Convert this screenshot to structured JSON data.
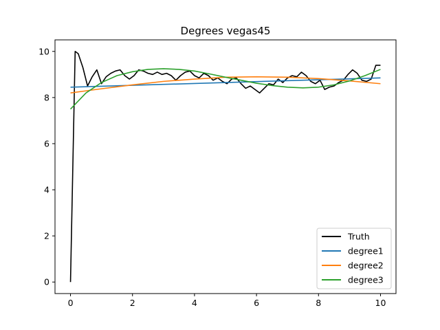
{
  "chart_data": {
    "type": "line",
    "title": "Degrees vegas45",
    "xlabel": "",
    "ylabel": "",
    "xlim": [
      -0.5,
      10.5
    ],
    "ylim": [
      -0.5,
      10.5
    ],
    "xticks": [
      0,
      2,
      4,
      6,
      8,
      10
    ],
    "yticks": [
      0,
      2,
      4,
      6,
      8,
      10
    ],
    "grid": false,
    "legend_position": "lower-right",
    "series": [
      {
        "name": "Truth",
        "color": "#000000",
        "x": [
          0,
          0.15,
          0.25,
          0.4,
          0.55,
          0.7,
          0.85,
          1.0,
          1.15,
          1.3,
          1.45,
          1.6,
          1.75,
          1.9,
          2.05,
          2.2,
          2.35,
          2.5,
          2.65,
          2.8,
          2.95,
          3.1,
          3.25,
          3.4,
          3.55,
          3.7,
          3.85,
          4.0,
          4.15,
          4.3,
          4.45,
          4.6,
          4.75,
          4.9,
          5.05,
          5.2,
          5.35,
          5.5,
          5.65,
          5.8,
          5.95,
          6.1,
          6.25,
          6.4,
          6.55,
          6.7,
          6.85,
          7.0,
          7.15,
          7.3,
          7.45,
          7.6,
          7.75,
          7.9,
          8.05,
          8.2,
          8.35,
          8.5,
          8.65,
          8.8,
          8.95,
          9.1,
          9.25,
          9.4,
          9.55,
          9.7,
          9.85,
          10.0
        ],
        "y": [
          0,
          10.0,
          9.9,
          9.3,
          8.5,
          8.9,
          9.2,
          8.6,
          8.9,
          9.05,
          9.15,
          9.2,
          8.95,
          8.8,
          8.95,
          9.2,
          9.15,
          9.05,
          9.0,
          9.1,
          9.0,
          9.05,
          8.95,
          8.75,
          8.95,
          9.1,
          9.15,
          8.95,
          8.85,
          9.05,
          8.95,
          8.75,
          8.85,
          8.7,
          8.6,
          8.8,
          8.85,
          8.6,
          8.4,
          8.5,
          8.35,
          8.2,
          8.4,
          8.6,
          8.55,
          8.8,
          8.65,
          8.85,
          8.95,
          8.9,
          9.1,
          8.95,
          8.7,
          8.6,
          8.75,
          8.35,
          8.45,
          8.5,
          8.65,
          8.75,
          9.0,
          9.2,
          9.05,
          8.75,
          8.7,
          8.8,
          9.4,
          9.4
        ]
      },
      {
        "name": "degree1",
        "color": "#1f77b4",
        "x": [
          0,
          10
        ],
        "y": [
          8.45,
          8.85
        ]
      },
      {
        "name": "degree2",
        "color": "#ff7f0e",
        "x": [
          0,
          1,
          2,
          3,
          4,
          5,
          6,
          7,
          8,
          9,
          10
        ],
        "y": [
          8.2,
          8.38,
          8.55,
          8.7,
          8.8,
          8.88,
          8.9,
          8.88,
          8.82,
          8.72,
          8.6
        ]
      },
      {
        "name": "degree3",
        "color": "#2ca02c",
        "x": [
          0,
          0.5,
          1,
          1.5,
          2,
          2.5,
          3,
          3.5,
          4,
          4.5,
          5,
          5.5,
          6,
          6.5,
          7,
          7.5,
          8,
          8.5,
          9,
          9.5,
          10
        ],
        "y": [
          7.5,
          8.2,
          8.65,
          8.95,
          9.12,
          9.22,
          9.25,
          9.22,
          9.15,
          9.02,
          8.88,
          8.75,
          8.62,
          8.52,
          8.45,
          8.42,
          8.45,
          8.55,
          8.72,
          8.95,
          9.22
        ]
      }
    ]
  }
}
